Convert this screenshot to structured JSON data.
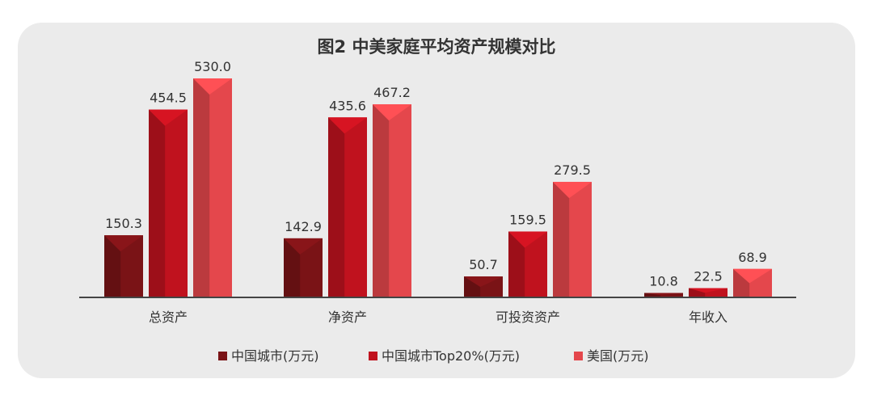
{
  "chart_data": {
    "type": "bar",
    "title": "图2 中美家庭平均资产规模对比",
    "categories": [
      "总资产",
      "净资产",
      "可投资资产",
      "年收入"
    ],
    "series": [
      {
        "name": "中国城市(万元)",
        "values": [
          150.3,
          142.9,
          50.7,
          10.8
        ],
        "color": "#7a1316"
      },
      {
        "name": "中国城市Top20%(万元)",
        "values": [
          454.5,
          435.6,
          159.5,
          22.5
        ],
        "color": "#c0121e"
      },
      {
        "name": "美国(万元)",
        "values": [
          530.0,
          467.2,
          279.5,
          68.9
        ],
        "color": "#e4474c"
      }
    ],
    "xlabel": "",
    "ylabel": "",
    "ylim": [
      0,
      600
    ],
    "grid": false,
    "legend_position": "bottom"
  }
}
